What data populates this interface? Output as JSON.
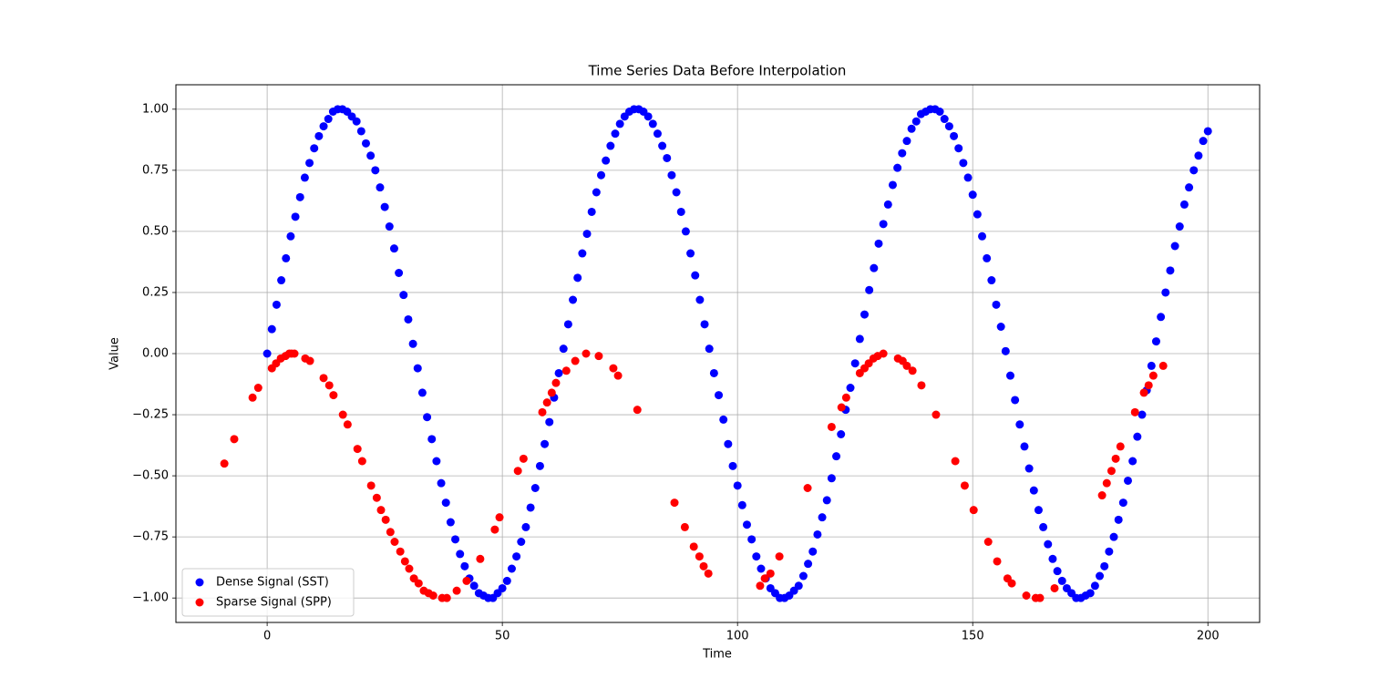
{
  "chart_data": {
    "type": "scatter",
    "title": "Time Series Data Before Interpolation",
    "xlabel": "Time",
    "ylabel": "Value",
    "xlim": [
      -19.4,
      211
    ],
    "ylim": [
      -1.1,
      1.1
    ],
    "xticks": [
      0,
      50,
      100,
      150,
      200
    ],
    "yticks": [
      {
        "value": 1,
        "label": "1.00"
      },
      {
        "value": 0.75,
        "label": "0.75"
      },
      {
        "value": 0.5,
        "label": "0.50"
      },
      {
        "value": 0.25,
        "label": "0.25"
      },
      {
        "value": 0,
        "label": "0.00"
      },
      {
        "value": -0.25,
        "label": "−0.25"
      },
      {
        "value": -0.5,
        "label": "−0.50"
      },
      {
        "value": -0.75,
        "label": "−0.75"
      },
      {
        "value": -1,
        "label": "−1.00"
      }
    ],
    "grid": true,
    "legend": "lower left",
    "series": [
      {
        "name": "Dense Signal (SST)",
        "color": "#0000ff",
        "x": [
          0,
          1,
          2,
          3,
          4,
          5,
          6,
          7,
          8,
          9,
          10,
          11,
          12,
          13,
          14,
          15,
          16,
          17,
          18,
          19,
          20,
          21,
          22,
          23,
          24,
          25,
          26,
          27,
          28,
          29,
          30,
          31,
          32,
          33,
          34,
          35,
          36,
          37,
          38,
          39,
          40,
          41,
          42,
          43,
          44,
          45,
          46,
          47,
          48,
          49,
          50,
          51,
          52,
          53,
          54,
          55,
          56,
          57,
          58,
          59,
          60,
          61,
          62,
          63,
          64,
          65,
          66,
          67,
          68,
          69,
          70,
          71,
          72,
          73,
          74,
          75,
          76,
          77,
          78,
          79,
          80,
          81,
          82,
          83,
          84,
          85,
          86,
          87,
          88,
          89,
          90,
          91,
          92,
          93,
          94,
          95,
          96,
          97,
          98,
          99,
          100,
          101,
          102,
          103,
          104,
          105,
          106,
          107,
          108,
          109,
          110,
          111,
          112,
          113,
          114,
          115,
          116,
          117,
          118,
          119,
          120,
          121,
          122,
          123,
          124,
          125,
          126,
          127,
          128,
          129,
          130,
          131,
          132,
          133,
          134,
          135,
          136,
          137,
          138,
          139,
          140,
          141,
          142,
          143,
          144,
          145,
          146,
          147,
          148,
          149,
          150,
          151,
          152,
          153,
          154,
          155,
          156,
          157,
          158,
          159,
          160,
          161,
          162,
          163,
          164,
          165,
          166,
          167,
          168,
          169,
          170,
          171,
          172,
          173,
          174,
          175,
          176,
          177,
          178,
          179,
          180,
          181,
          182,
          183,
          184,
          185,
          186,
          187,
          188,
          189,
          190,
          191,
          192,
          193,
          194,
          195,
          196,
          197,
          198,
          199,
          200
        ],
        "values": [
          0,
          0.1,
          0.2,
          0.3,
          0.39,
          0.48,
          0.56,
          0.64,
          0.72,
          0.78,
          0.84,
          0.89,
          0.93,
          0.96,
          0.99,
          1,
          1,
          0.99,
          0.97,
          0.95,
          0.91,
          0.86,
          0.81,
          0.75,
          0.68,
          0.6,
          0.52,
          0.43,
          0.33,
          0.24,
          0.14,
          0.04,
          -0.06,
          -0.16,
          -0.26,
          -0.35,
          -0.44,
          -0.53,
          -0.61,
          -0.69,
          -0.76,
          -0.82,
          -0.87,
          -0.92,
          -0.95,
          -0.98,
          -0.99,
          -1,
          -1,
          -0.98,
          -0.96,
          -0.93,
          -0.88,
          -0.83,
          -0.77,
          -0.71,
          -0.63,
          -0.55,
          -0.46,
          -0.37,
          -0.28,
          -0.18,
          -0.08,
          0.02,
          0.12,
          0.22,
          0.31,
          0.41,
          0.49,
          0.58,
          0.66,
          0.73,
          0.79,
          0.85,
          0.9,
          0.94,
          0.97,
          0.99,
          1,
          1,
          0.99,
          0.97,
          0.94,
          0.9,
          0.85,
          0.8,
          0.73,
          0.66,
          0.58,
          0.5,
          0.41,
          0.32,
          0.22,
          0.12,
          0.02,
          -0.08,
          -0.17,
          -0.27,
          -0.37,
          -0.46,
          -0.54,
          -0.62,
          -0.7,
          -0.76,
          -0.83,
          -0.88,
          -0.92,
          -0.96,
          -0.98,
          -1,
          -1,
          -0.99,
          -0.97,
          -0.95,
          -0.91,
          -0.86,
          -0.81,
          -0.74,
          -0.67,
          -0.6,
          -0.51,
          -0.42,
          -0.33,
          -0.23,
          -0.14,
          -0.04,
          0.06,
          0.16,
          0.26,
          0.35,
          0.45,
          0.53,
          0.61,
          0.69,
          0.76,
          0.82,
          0.87,
          0.92,
          0.95,
          0.98,
          0.99,
          1,
          1,
          0.99,
          0.96,
          0.93,
          0.89,
          0.84,
          0.78,
          0.72,
          0.65,
          0.57,
          0.48,
          0.39,
          0.3,
          0.2,
          0.11,
          0.01,
          -0.09,
          -0.19,
          -0.29,
          -0.38,
          -0.47,
          -0.56,
          -0.64,
          -0.71,
          -0.78,
          -0.84,
          -0.89,
          -0.93,
          -0.96,
          -0.98,
          -1,
          -1,
          -0.99,
          -0.98,
          -0.95,
          -0.91,
          -0.87,
          -0.81,
          -0.75,
          -0.68,
          -0.61,
          -0.52,
          -0.44,
          -0.34,
          -0.25,
          -0.15,
          -0.05,
          0.05,
          0.15,
          0.25,
          0.34,
          0.44,
          0.52,
          0.61,
          0.68,
          0.75,
          0.81,
          0.87,
          0.91
        ]
      },
      {
        "name": "Sparse Signal (SPP)",
        "color": "#ff0000",
        "x": [
          -9.1,
          -7,
          -3.1,
          -1.9,
          1,
          1.9,
          2.9,
          3.9,
          4.7,
          5.2,
          5.8,
          8.1,
          9.1,
          12,
          13.2,
          14.1,
          16.1,
          17.1,
          19.2,
          20.2,
          22.1,
          23.3,
          24.2,
          25.2,
          26.2,
          27.1,
          28.3,
          29.3,
          30.2,
          31.2,
          32.2,
          33.3,
          34.3,
          35.3,
          37.2,
          38.2,
          40.3,
          42.4,
          45.3,
          48.4,
          49.4,
          53.3,
          54.5,
          58.5,
          59.5,
          60.5,
          61.4,
          63.6,
          65.5,
          67.8,
          70.5,
          73.6,
          74.6,
          78.7,
          86.6,
          88.8,
          90.7,
          91.9,
          92.8,
          93.8,
          104.8,
          105.8,
          107,
          108.9,
          114.9,
          120,
          122.1,
          123.1,
          126,
          127,
          127.9,
          128.9,
          129.8,
          131,
          134.1,
          135.1,
          136,
          137.2,
          139.1,
          142.2,
          146.3,
          148.3,
          150.2,
          153.3,
          155.2,
          157.4,
          158.3,
          161.4,
          163.4,
          164.3,
          167.4,
          177.5,
          178.5,
          179.5,
          180.4,
          181.4,
          184.5,
          186.4,
          187.4,
          188.4,
          190.5
        ],
        "values": [
          -0.45,
          -0.35,
          -0.18,
          -0.14,
          -0.06,
          -0.04,
          -0.02,
          -0.01,
          0,
          0,
          0,
          -0.02,
          -0.03,
          -0.1,
          -0.13,
          -0.17,
          -0.25,
          -0.29,
          -0.39,
          -0.44,
          -0.54,
          -0.59,
          -0.64,
          -0.68,
          -0.73,
          -0.77,
          -0.81,
          -0.85,
          -0.88,
          -0.92,
          -0.94,
          -0.97,
          -0.98,
          -0.99,
          -1,
          -1,
          -0.97,
          -0.93,
          -0.84,
          -0.72,
          -0.67,
          -0.48,
          -0.43,
          -0.24,
          -0.2,
          -0.16,
          -0.12,
          -0.07,
          -0.03,
          0,
          -0.01,
          -0.06,
          -0.09,
          -0.23,
          -0.61,
          -0.71,
          -0.79,
          -0.83,
          -0.87,
          -0.9,
          -0.95,
          -0.92,
          -0.9,
          -0.83,
          -0.55,
          -0.3,
          -0.22,
          -0.18,
          -0.08,
          -0.06,
          -0.04,
          -0.02,
          -0.01,
          0,
          -0.02,
          -0.03,
          -0.05,
          -0.07,
          -0.13,
          -0.25,
          -0.44,
          -0.54,
          -0.64,
          -0.77,
          -0.85,
          -0.92,
          -0.94,
          -0.99,
          -1,
          -1,
          -0.96,
          -0.58,
          -0.53,
          -0.48,
          -0.43,
          -0.38,
          -0.24,
          -0.16,
          -0.13,
          -0.09,
          -0.05
        ]
      }
    ]
  }
}
